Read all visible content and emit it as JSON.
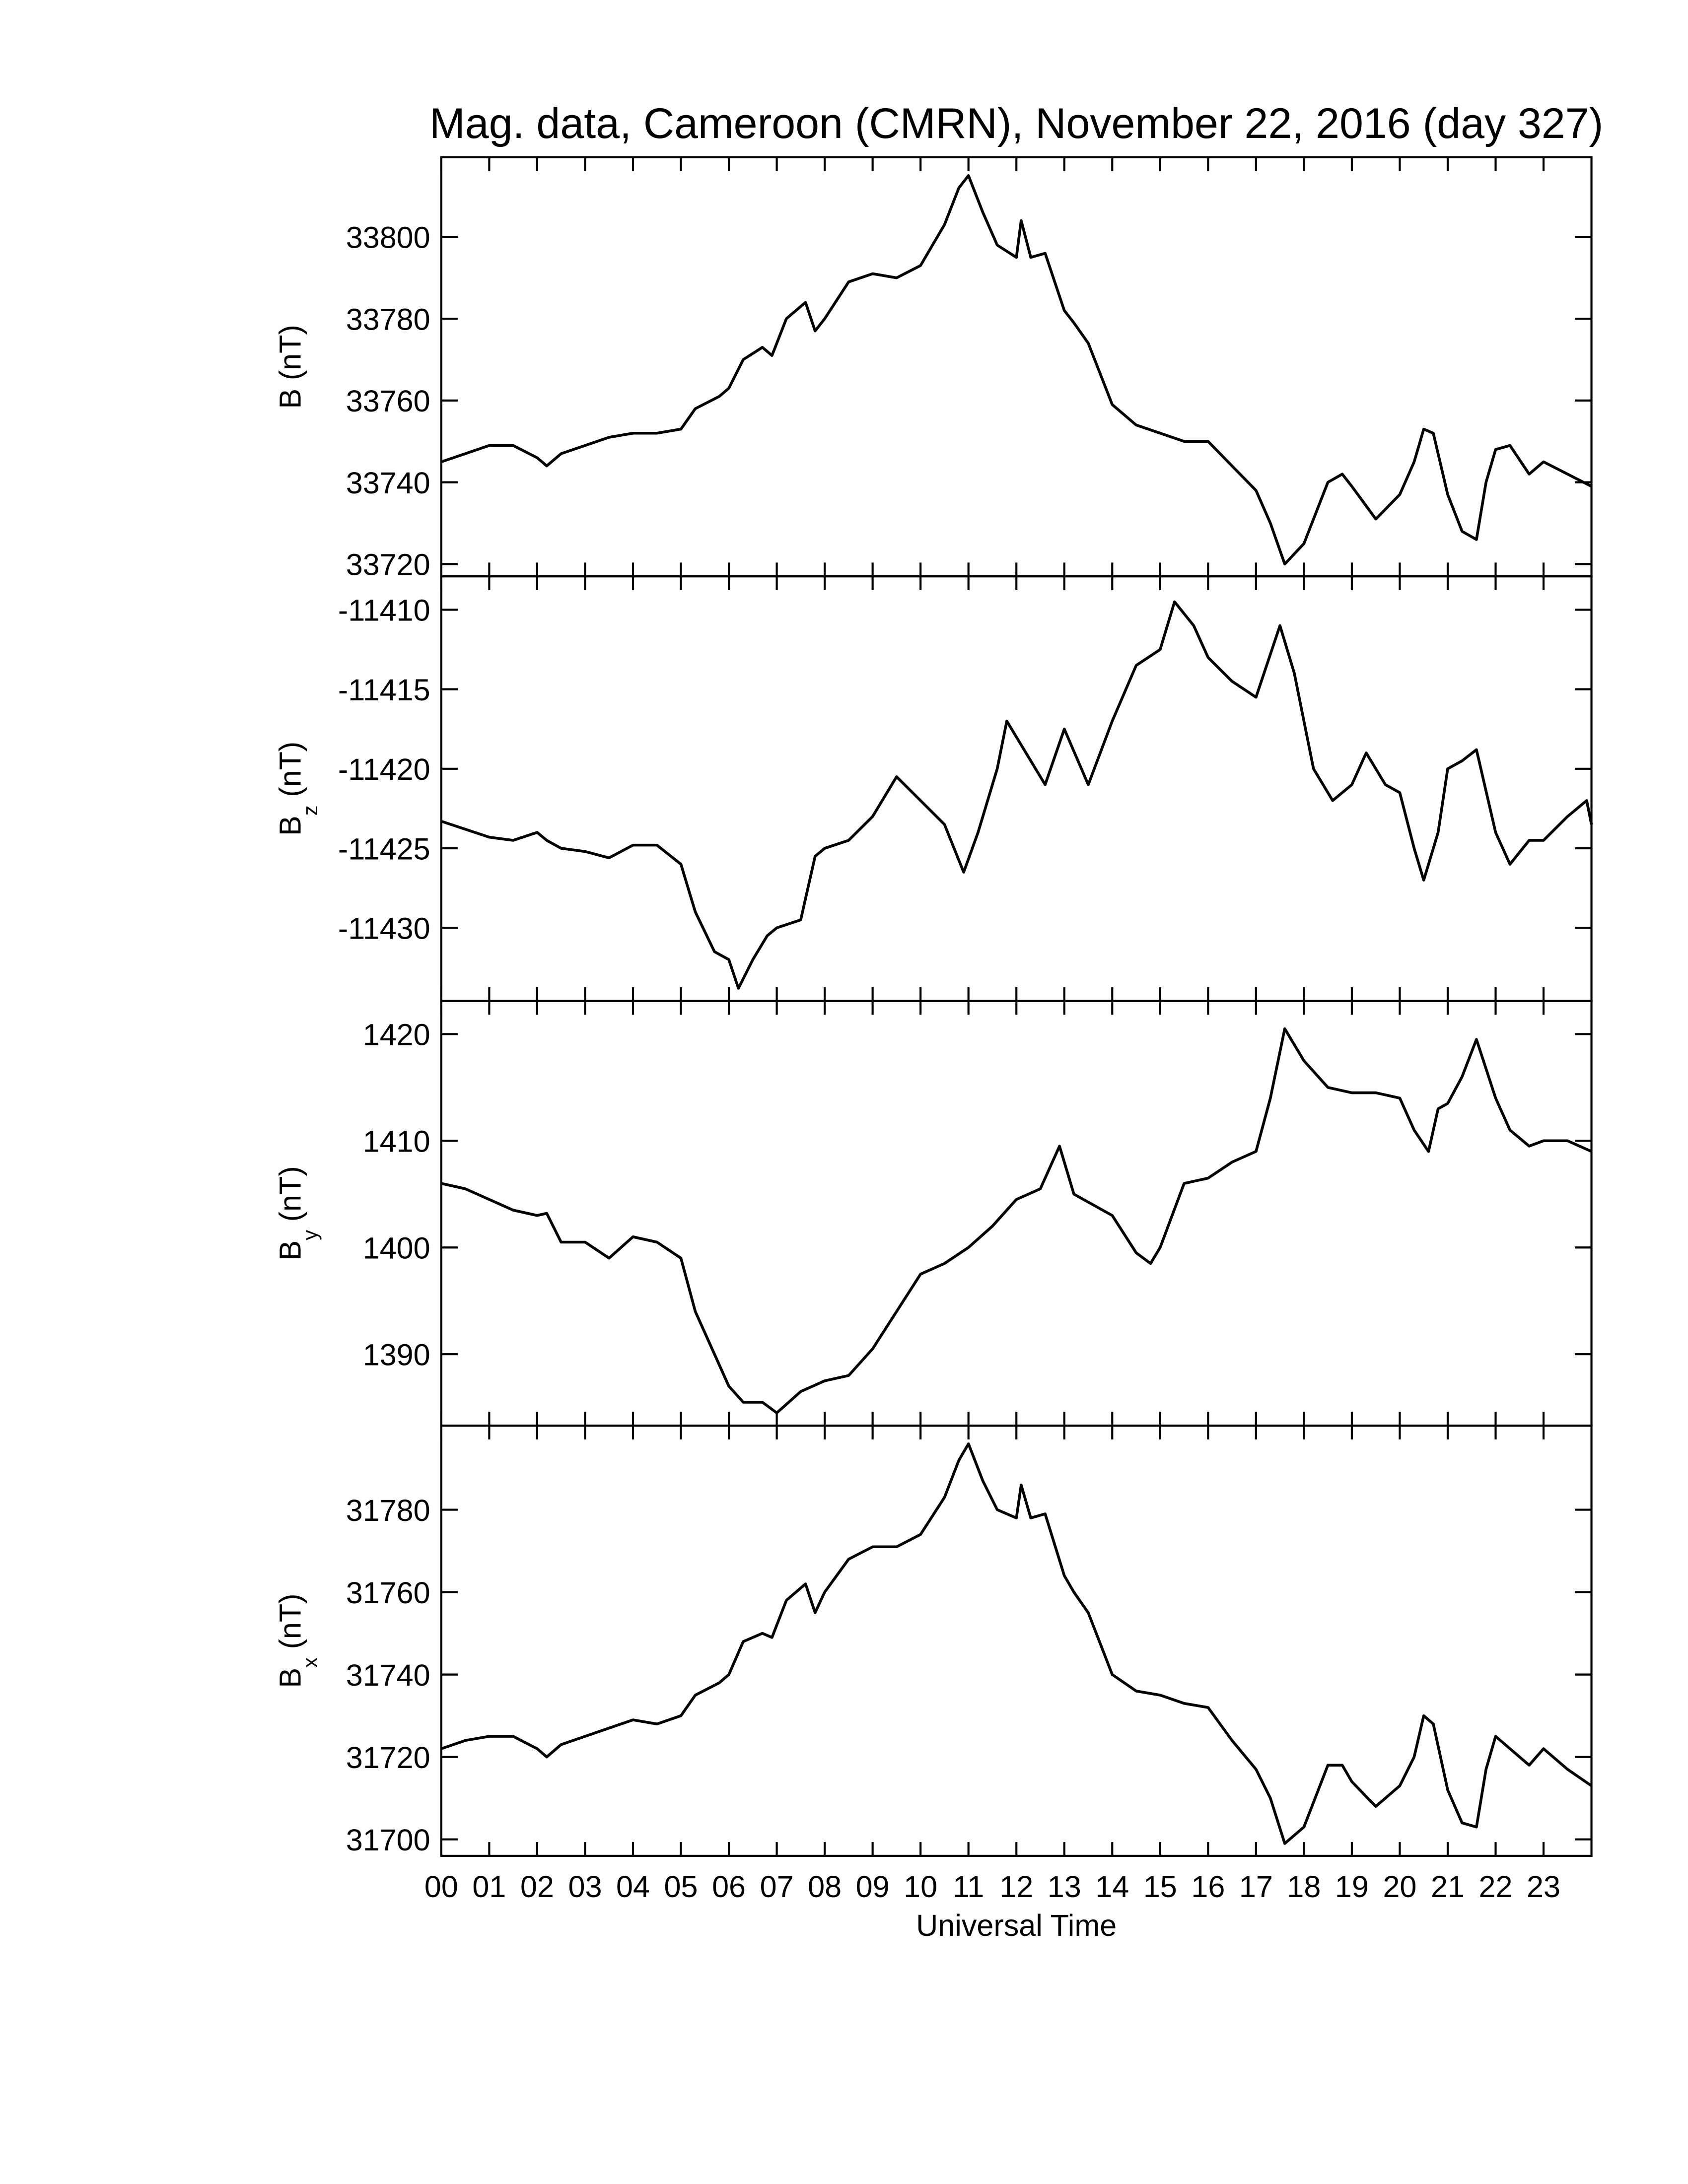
{
  "chart_data": [
    {
      "type": "line",
      "title": "Mag. data, Cameroon (CMRN), November 22, 2016 (day 327)",
      "ylabel": "B",
      "ylabel_unit": "(nT)",
      "xlim": [
        0,
        24
      ],
      "xticks": [
        0,
        1,
        2,
        3,
        4,
        5,
        6,
        7,
        8,
        9,
        10,
        11,
        12,
        13,
        14,
        15,
        16,
        17,
        18,
        19,
        20,
        21,
        22,
        23
      ],
      "ylim": [
        33717,
        33819.5
      ],
      "yticks": [
        33720,
        33740,
        33760,
        33780,
        33800
      ],
      "x": [
        0,
        0.5,
        1,
        1.5,
        2,
        2.2,
        2.5,
        3,
        3.5,
        4,
        4.5,
        5,
        5.3,
        5.8,
        6,
        6.3,
        6.7,
        6.9,
        7.2,
        7.6,
        7.8,
        8,
        8.5,
        9,
        9.5,
        10,
        10.5,
        10.8,
        11,
        11.3,
        11.6,
        12,
        12.1,
        12.3,
        12.6,
        13,
        13.2,
        13.5,
        14,
        14.5,
        15,
        15.5,
        16,
        16.5,
        17,
        17.3,
        17.6,
        18,
        18.5,
        18.8,
        19,
        19.5,
        20,
        20.3,
        20.5,
        20.7,
        21,
        21.3,
        21.6,
        21.8,
        22,
        22.3,
        22.7,
        23,
        23.5,
        24
      ],
      "series": [
        {
          "color": "#000000",
          "values": [
            33745,
            33747,
            33749,
            33749,
            33746,
            33744,
            33747,
            33749,
            33751,
            33752,
            33752,
            33753,
            33758,
            33761,
            33763,
            33770,
            33773,
            33771,
            33780,
            33784,
            33777,
            33780,
            33789,
            33791,
            33790,
            33793,
            33803,
            33812,
            33815,
            33806,
            33798,
            33795,
            33804,
            33795,
            33796,
            33782,
            33779,
            33774,
            33759,
            33754,
            33752,
            33750,
            33750,
            33744,
            33738,
            33730,
            33720,
            33725,
            33740,
            33742,
            33739,
            33731,
            33737,
            33745,
            33753,
            33752,
            33737,
            33728,
            33726,
            33740,
            33748,
            33749,
            33742,
            33745,
            33742,
            33739
          ]
        }
      ]
    },
    {
      "type": "line",
      "ylabel": "B",
      "ylabel_sub": "z",
      "ylabel_unit": "(nT)",
      "xlim": [
        0,
        24
      ],
      "xticks": [
        0,
        1,
        2,
        3,
        4,
        5,
        6,
        7,
        8,
        9,
        10,
        11,
        12,
        13,
        14,
        15,
        16,
        17,
        18,
        19,
        20,
        21,
        22,
        23
      ],
      "ylim": [
        -11434.6,
        -11407.9
      ],
      "yticks": [
        -11430,
        -11425,
        -11420,
        -11415,
        -11410
      ],
      "x": [
        0,
        0.5,
        1,
        1.5,
        2,
        2.2,
        2.5,
        3,
        3.5,
        4,
        4.5,
        5,
        5.3,
        5.7,
        6,
        6.2,
        6.5,
        6.8,
        7,
        7.5,
        7.8,
        8,
        8.5,
        9,
        9.5,
        10,
        10.5,
        10.9,
        11.2,
        11.6,
        11.8,
        12.2,
        12.6,
        13,
        13.5,
        14,
        14.5,
        15,
        15.3,
        15.7,
        16,
        16.5,
        17,
        17.5,
        17.8,
        18.2,
        18.6,
        19,
        19.3,
        19.7,
        20,
        20.3,
        20.5,
        20.8,
        21,
        21.3,
        21.6,
        22,
        22.3,
        22.7,
        23,
        23.5,
        23.9,
        24
      ],
      "series": [
        {
          "color": "#000000",
          "values": [
            -11423.3,
            -11423.8,
            -11424.3,
            -11424.5,
            -11424,
            -11424.5,
            -11425,
            -11425.2,
            -11425.6,
            -11424.8,
            -11424.8,
            -11426,
            -11429,
            -11431.5,
            -11432,
            -11433.8,
            -11432,
            -11430.5,
            -11430,
            -11429.5,
            -11425.5,
            -11425,
            -11424.5,
            -11423,
            -11420.5,
            -11422,
            -11423.5,
            -11426.5,
            -11424,
            -11420,
            -11417,
            -11419,
            -11421,
            -11417.5,
            -11421,
            -11417,
            -11413.5,
            -11412.5,
            -11409.5,
            -11411,
            -11413,
            -11414.5,
            -11415.5,
            -11411,
            -11414,
            -11420,
            -11422,
            -11421,
            -11419,
            -11421,
            -11421.5,
            -11425,
            -11427,
            -11424,
            -11420,
            -11419.5,
            -11418.8,
            -11424,
            -11426,
            -11424.5,
            -11424.5,
            -11423,
            -11422,
            -11423.5
          ]
        }
      ]
    },
    {
      "type": "line",
      "ylabel": "B",
      "ylabel_sub": "y",
      "ylabel_unit": "(nT)",
      "xlim": [
        0,
        24
      ],
      "xticks": [
        0,
        1,
        2,
        3,
        4,
        5,
        6,
        7,
        8,
        9,
        10,
        11,
        12,
        13,
        14,
        15,
        16,
        17,
        18,
        19,
        20,
        21,
        22,
        23
      ],
      "ylim": [
        1383.3,
        1423.1
      ],
      "yticks": [
        1390,
        1400,
        1410,
        1420
      ],
      "x": [
        0,
        0.5,
        1,
        1.5,
        2,
        2.2,
        2.5,
        3,
        3.5,
        4,
        4.5,
        5,
        5.3,
        5.7,
        6,
        6.3,
        6.7,
        7,
        7.5,
        8,
        8.5,
        9,
        9.5,
        10,
        10.5,
        11,
        11.5,
        12,
        12.5,
        12.9,
        13.2,
        13.6,
        14,
        14.5,
        14.8,
        15,
        15.5,
        16,
        16.5,
        17,
        17.3,
        17.6,
        18,
        18.5,
        19,
        19.5,
        20,
        20.3,
        20.6,
        20.8,
        21,
        21.3,
        21.6,
        22,
        22.3,
        22.7,
        23,
        23.5,
        24
      ],
      "series": [
        {
          "color": "#000000",
          "values": [
            1406,
            1405.5,
            1404.5,
            1403.5,
            1403,
            1403.2,
            1400.5,
            1400.5,
            1399,
            1401,
            1400.5,
            1399,
            1394,
            1390,
            1387,
            1385.5,
            1385.5,
            1384.5,
            1386.5,
            1387.5,
            1388,
            1390.5,
            1394,
            1397.5,
            1398.5,
            1400,
            1402,
            1404.5,
            1405.5,
            1409.5,
            1405,
            1404,
            1403,
            1399.5,
            1398.5,
            1400,
            1406,
            1406.5,
            1408,
            1409,
            1414,
            1420.5,
            1417.5,
            1415,
            1414.5,
            1414.5,
            1414,
            1411,
            1409,
            1413,
            1413.5,
            1416,
            1419.5,
            1414,
            1411,
            1409.5,
            1410,
            1410,
            1409
          ]
        }
      ]
    },
    {
      "type": "line",
      "ylabel": "B",
      "ylabel_sub": "x",
      "ylabel_unit": "(nT)",
      "xlabel": "Universal Time",
      "xlim": [
        0,
        24
      ],
      "xticks": [
        {
          "value": 0,
          "label": "00"
        },
        {
          "value": 1,
          "label": "01"
        },
        {
          "value": 2,
          "label": "02"
        },
        {
          "value": 3,
          "label": "03"
        },
        {
          "value": 4,
          "label": "04"
        },
        {
          "value": 5,
          "label": "05"
        },
        {
          "value": 6,
          "label": "06"
        },
        {
          "value": 7,
          "label": "07"
        },
        {
          "value": 8,
          "label": "08"
        },
        {
          "value": 9,
          "label": "09"
        },
        10,
        11,
        12,
        13,
        14,
        15,
        16,
        17,
        18,
        19,
        20,
        21,
        22,
        23
      ],
      "ylim": [
        31696,
        31800.4
      ],
      "yticks": [
        31700,
        31720,
        31740,
        31760,
        31780
      ],
      "x": [
        0,
        0.5,
        1,
        1.5,
        2,
        2.2,
        2.5,
        3,
        3.5,
        4,
        4.5,
        5,
        5.3,
        5.8,
        6,
        6.3,
        6.7,
        6.9,
        7.2,
        7.6,
        7.8,
        8,
        8.5,
        9,
        9.5,
        10,
        10.5,
        10.8,
        11,
        11.3,
        11.6,
        12,
        12.1,
        12.3,
        12.6,
        13,
        13.2,
        13.5,
        14,
        14.5,
        15,
        15.5,
        16,
        16.5,
        17,
        17.3,
        17.6,
        18,
        18.5,
        18.8,
        19,
        19.5,
        20,
        20.3,
        20.5,
        20.7,
        21,
        21.3,
        21.6,
        21.8,
        22,
        22.3,
        22.7,
        23,
        23.5,
        24
      ],
      "series": [
        {
          "color": "#000000",
          "values": [
            31722,
            31724,
            31725,
            31725,
            31722,
            31720,
            31723,
            31725,
            31727,
            31729,
            31728,
            31730,
            31735,
            31738,
            31740,
            31748,
            31750,
            31749,
            31758,
            31762,
            31755,
            31760,
            31768,
            31771,
            31771,
            31774,
            31783,
            31792,
            31796,
            31787,
            31780,
            31778,
            31786,
            31778,
            31779,
            31764,
            31760,
            31755,
            31740,
            31736,
            31735,
            31733,
            31732,
            31724,
            31717,
            31710,
            31699,
            31703,
            31718,
            31718,
            31714,
            31708,
            31713,
            31720,
            31730,
            31728,
            31712,
            31704,
            31703,
            31717,
            31725,
            31722,
            31718,
            31722,
            31717,
            31713
          ]
        }
      ]
    }
  ]
}
